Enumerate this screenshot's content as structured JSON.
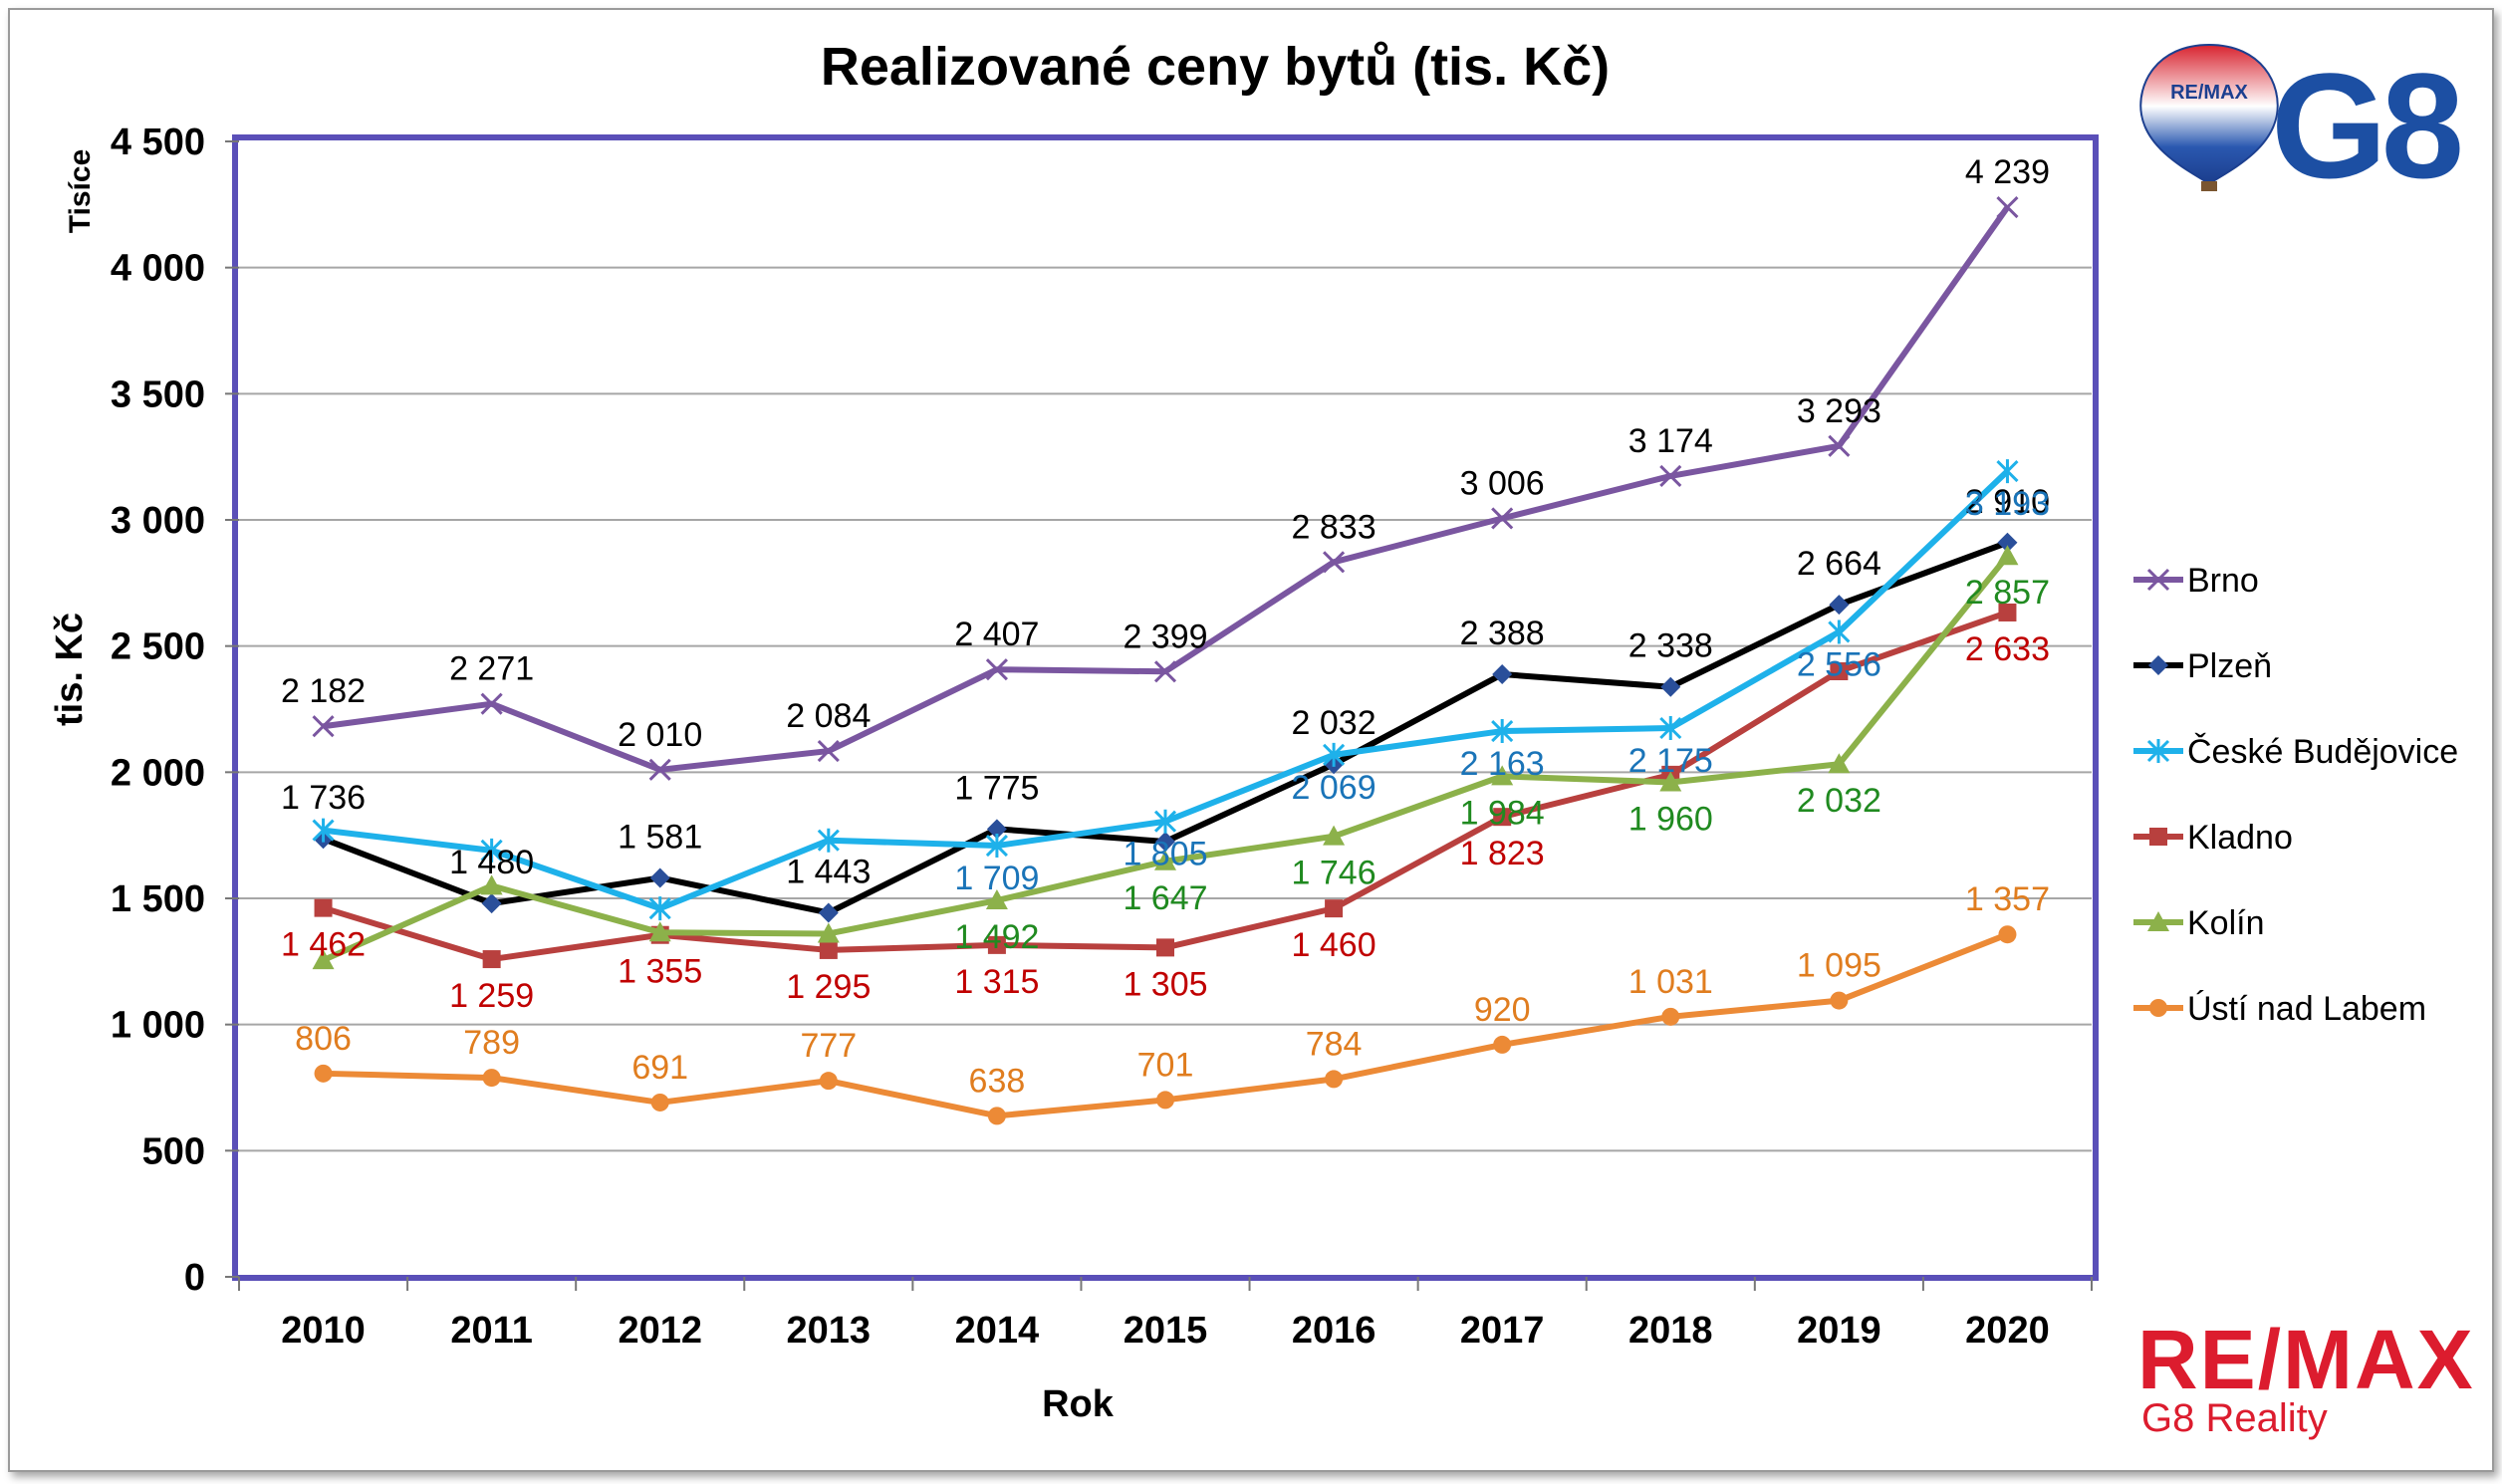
{
  "chart_data": {
    "type": "line",
    "title": "Realizované ceny bytů (tis. Kč)",
    "xlabel": "Rok",
    "ylabel": "tis. Kč",
    "unit_label": "Tisíce",
    "categories": [
      "2010",
      "2011",
      "2012",
      "2013",
      "2014",
      "2015",
      "2016",
      "2017",
      "2018",
      "2019",
      "2020"
    ],
    "ylim": [
      0,
      4500
    ],
    "ytick_values": [
      0,
      500,
      1000,
      1500,
      2000,
      2500,
      3000,
      3500,
      4000,
      4500
    ],
    "ytick_labels": [
      "0",
      "500",
      "1 000",
      "1 500",
      "2 000",
      "2 500",
      "3 000",
      "3 500",
      "4 000",
      "4 500"
    ],
    "grid": true,
    "legend_position": "right",
    "series": [
      {
        "name": "Brno",
        "color": "#7a56a0",
        "label_color": "#000000",
        "marker": "x",
        "values": [
          2182,
          2271,
          2010,
          2084,
          2407,
          2399,
          2833,
          3006,
          3174,
          3293,
          4239
        ],
        "labels": [
          "2 182",
          "2 271",
          "2 010",
          "2 084",
          "2 407",
          "2 399",
          "2 833",
          "3 006",
          "3 174",
          "3 293",
          "4 239"
        ]
      },
      {
        "name": "Plzeň",
        "color": "#000000",
        "label_color": "#000000",
        "marker": "diamond",
        "values": [
          1736,
          1480,
          1581,
          1443,
          1775,
          1725,
          2032,
          2388,
          2338,
          2664,
          2910
        ],
        "labels": [
          "1 736",
          "1 480",
          "1 581",
          "1 443",
          "1 775",
          "",
          "2 032",
          "2 388",
          "2 338",
          "2 664",
          "2 910"
        ]
      },
      {
        "name": "České Budějovice",
        "color": "#1eb1ea",
        "label_color": "#1a74b8",
        "marker": "star",
        "values": [
          1770,
          1690,
          1460,
          1730,
          1709,
          1805,
          2069,
          2163,
          2175,
          2556,
          3193
        ],
        "labels": [
          "",
          "",
          "",
          "",
          "1 709",
          "1 805",
          "2 069",
          "2 163",
          "2 175",
          "2 556",
          "3 193"
        ]
      },
      {
        "name": "Kladno",
        "color": "#b8403e",
        "label_color": "#c00000",
        "marker": "square",
        "values": [
          1462,
          1259,
          1355,
          1295,
          1315,
          1305,
          1460,
          1823,
          1990,
          2400,
          2633
        ],
        "labels": [
          "1 462",
          "1 259",
          "1 355",
          "1 295",
          "1 315",
          "1 305",
          "1 460",
          "1 823",
          "",
          "",
          "2 633"
        ]
      },
      {
        "name": "Kolín",
        "color": "#8cb14a",
        "label_color": "#208a20",
        "marker": "triangle",
        "values": [
          1255,
          1550,
          1365,
          1360,
          1492,
          1647,
          1746,
          1984,
          1960,
          2032,
          2857
        ],
        "labels": [
          "",
          "",
          "",
          "",
          "1 492",
          "1 647",
          "1 746",
          "1 984",
          "1 960",
          "2 032",
          "2 857"
        ]
      },
      {
        "name": "Ústí nad Labem",
        "color": "#ec8a36",
        "label_color": "#e07d1f",
        "marker": "circle",
        "values": [
          806,
          789,
          691,
          777,
          638,
          701,
          784,
          920,
          1031,
          1095,
          1357
        ],
        "labels": [
          "806",
          "789",
          "691",
          "777",
          "638",
          "701",
          "784",
          "920",
          "1 031",
          "1 095",
          "1 357"
        ]
      }
    ]
  },
  "branding": {
    "remax_word": "RE/MAX",
    "remax_sub": "G8 Reality",
    "balloon_word": "RE/MAX",
    "g8_logo": "G8"
  }
}
